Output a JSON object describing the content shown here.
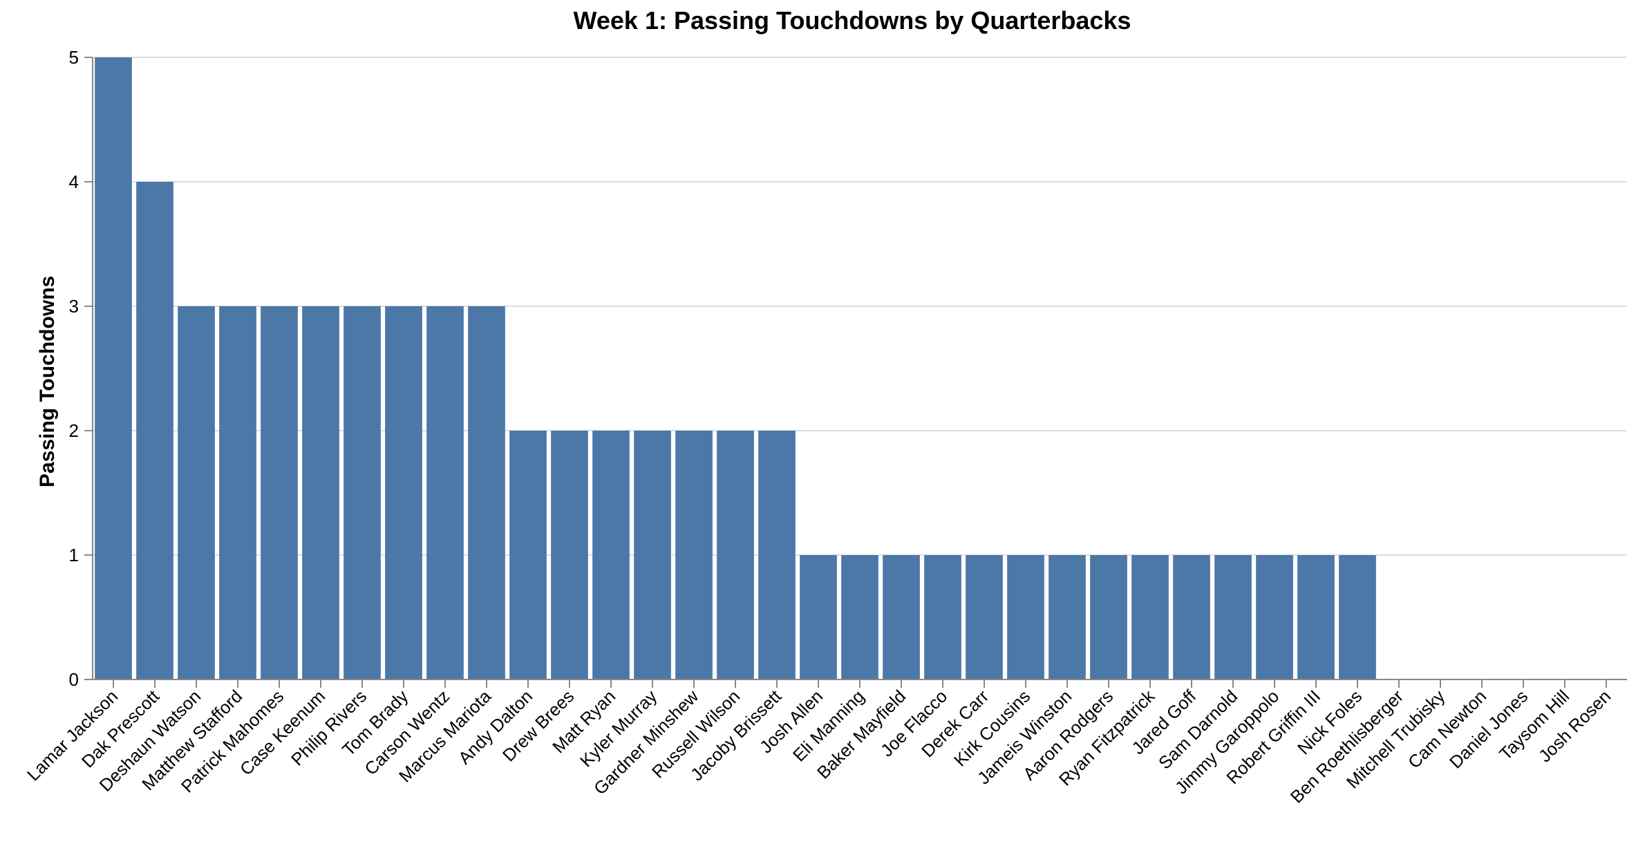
{
  "chart_data": {
    "type": "bar",
    "title": "Week 1: Passing Touchdowns by Quarterbacks",
    "xlabel": "",
    "ylabel": "Passing Touchdowns",
    "ylim": [
      0,
      5
    ],
    "yticks": [
      "0",
      "1",
      "2",
      "3",
      "4",
      "5"
    ],
    "grid": true,
    "bar_color": "#4c78a8",
    "categories": [
      "Lamar Jackson",
      "Dak Prescott",
      "Deshaun Watson",
      "Matthew Stafford",
      "Patrick Mahomes",
      "Case Keenum",
      "Philip Rivers",
      "Tom Brady",
      "Carson Wentz",
      "Marcus Mariota",
      "Andy Dalton",
      "Drew Brees",
      "Matt Ryan",
      "Kyler Murray",
      "Gardner Minshew",
      "Russell Wilson",
      "Jacoby Brissett",
      "Josh Allen",
      "Eli Manning",
      "Baker Mayfield",
      "Joe Flacco",
      "Derek Carr",
      "Kirk Cousins",
      "Jameis Winston",
      "Aaron Rodgers",
      "Ryan Fitzpatrick",
      "Jared Goff",
      "Sam Darnold",
      "Jimmy Garoppolo",
      "Robert Griffin III",
      "Nick Foles",
      "Ben Roethlisberger",
      "Mitchell Trubisky",
      "Cam Newton",
      "Daniel Jones",
      "Taysom Hill",
      "Josh Rosen"
    ],
    "values": [
      5,
      4,
      3,
      3,
      3,
      3,
      3,
      3,
      3,
      3,
      2,
      2,
      2,
      2,
      2,
      2,
      2,
      1,
      1,
      1,
      1,
      1,
      1,
      1,
      1,
      1,
      1,
      1,
      1,
      1,
      1,
      0,
      0,
      0,
      0,
      0,
      0
    ]
  }
}
